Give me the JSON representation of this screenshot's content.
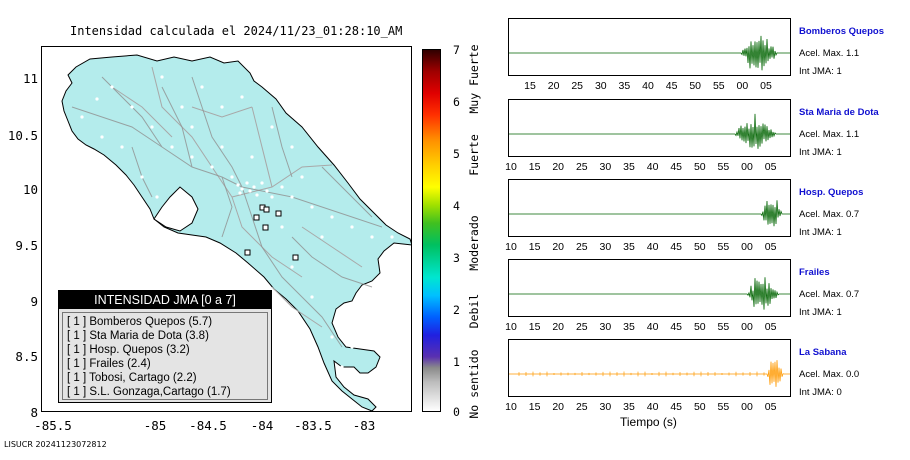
{
  "map": {
    "title": "Intensidad calculada el 2024/11/23_01:28:10_AM",
    "lat_ticks": [
      "11",
      "10.5",
      "10",
      "9.5",
      "9",
      "8.5",
      "8"
    ],
    "lon_ticks": [
      "-85.5",
      "-85",
      "-84.5",
      "-84",
      "-83.5",
      "-83"
    ],
    "land_color": "#b4ecec",
    "stations_shown": 5
  },
  "legend": {
    "title": "INTENSIDAD JMA [0 a 7]",
    "items": [
      "[ 1 ]  Bomberos Quepos (5.7)",
      "[ 1 ]  Sta Maria de Dota (3.8)",
      "[ 1 ]  Hosp. Quepos (3.2)",
      "[ 1 ]  Frailes (2.4)",
      "[ 1 ]  Tobosi, Cartago (2.2)",
      "[ 1 ]  S.L. Gonzaga,Cartago (1.7)"
    ]
  },
  "colorbar": {
    "ticks": [
      "7",
      "6",
      "5",
      "4",
      "3",
      "2",
      "1",
      "0"
    ],
    "words": [
      "Muy Fuerte",
      "Fuerte",
      "Moderado",
      "Debil",
      "No sentido"
    ]
  },
  "footer": {
    "id": "LISUCR 20241123072812"
  },
  "waveforms": {
    "xlabel": "Tiempo (s)",
    "colors": {
      "green": "#006400",
      "orange": "#ff9900",
      "station_name": "#1010d0"
    },
    "panels": [
      {
        "name": "Bomberos Quepos",
        "acel": "Acel. Max. 1.1",
        "int": "Int JMA: 1",
        "color": "green",
        "ticks": [
          "15",
          "20",
          "25",
          "30",
          "35",
          "40",
          "45",
          "50",
          "55",
          "00",
          "05"
        ],
        "onset_fraction": 0.82
      },
      {
        "name": "Sta Maria de Dota",
        "acel": "Acel. Max. 1.1",
        "int": "Int JMA: 1",
        "color": "green",
        "ticks": [
          "10",
          "15",
          "20",
          "25",
          "30",
          "35",
          "40",
          "45",
          "50",
          "55",
          "00",
          "05"
        ],
        "onset_fraction": 0.8
      },
      {
        "name": "Hosp. Quepos",
        "acel": "Acel. Max. 0.7",
        "int": "Int JMA: 1",
        "color": "green",
        "ticks": [
          "10",
          "15",
          "20",
          "25",
          "30",
          "35",
          "40",
          "45",
          "50",
          "55",
          "00",
          "05"
        ],
        "onset_fraction": 0.89
      },
      {
        "name": "Frailes",
        "acel": "Acel. Max. 0.7",
        "int": "Int JMA: 1",
        "color": "green",
        "ticks": [
          "10",
          "15",
          "20",
          "25",
          "30",
          "35",
          "40",
          "45",
          "50",
          "55",
          "00",
          "05"
        ],
        "onset_fraction": 0.84
      },
      {
        "name": "La Sabana",
        "acel": "Acel. Max. 0.0",
        "int": "Int JMA: 0",
        "color": "orange",
        "ticks": [
          "10",
          "15",
          "20",
          "25",
          "30",
          "35",
          "40",
          "45",
          "50",
          "55",
          "00",
          "05"
        ],
        "onset_fraction": 0.91
      }
    ]
  }
}
